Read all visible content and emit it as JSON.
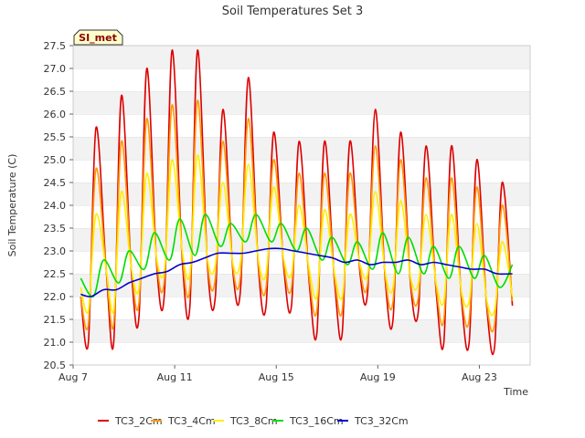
{
  "chart_data": {
    "type": "line",
    "title": "Soil Temperatures Set 3",
    "xlabel": "Time",
    "ylabel": "Soil Temperature (C)",
    "badge": "SI_met",
    "ylim": [
      20.5,
      27.5
    ],
    "yticks": [
      "20.5",
      "21.0",
      "21.5",
      "22.0",
      "22.5",
      "23.0",
      "23.5",
      "24.0",
      "24.5",
      "25.0",
      "25.5",
      "26.0",
      "26.5",
      "27.0",
      "27.5"
    ],
    "xlim": [
      0,
      18
    ],
    "xticks": [
      {
        "x": 0,
        "label": "Aug 7"
      },
      {
        "x": 4,
        "label": "Aug 11"
      },
      {
        "x": 8,
        "label": "Aug 15"
      },
      {
        "x": 12,
        "label": "Aug 19"
      },
      {
        "x": 16,
        "label": "Aug 23"
      }
    ],
    "grid": "horizontal bands",
    "legend_position": "bottom",
    "series": [
      {
        "name": "TC3_2Cm",
        "color": "#dd0000",
        "x": [
          0.3,
          0.6,
          0.9,
          1.3,
          1.6,
          1.9,
          2.3,
          2.6,
          2.9,
          3.3,
          3.6,
          3.9,
          4.3,
          4.6,
          4.9,
          5.3,
          5.6,
          5.9,
          6.3,
          6.6,
          6.9,
          7.3,
          7.6,
          7.9,
          8.3,
          8.6,
          8.9,
          9.3,
          9.6,
          9.9,
          10.3,
          10.6,
          10.9,
          11.3,
          11.6,
          11.9,
          12.3,
          12.6,
          12.9,
          13.3,
          13.6,
          13.9,
          14.3,
          14.6,
          14.9,
          15.3,
          15.6,
          15.9,
          16.3,
          16.6,
          16.9,
          17.3
        ],
        "y": [
          22.0,
          21.0,
          25.7,
          22.6,
          21.0,
          26.4,
          22.5,
          21.6,
          27.0,
          22.6,
          22.1,
          27.4,
          22.8,
          21.8,
          27.4,
          22.6,
          22.0,
          26.1,
          22.5,
          22.2,
          26.8,
          22.6,
          21.8,
          25.6,
          22.6,
          21.8,
          25.4,
          22.3,
          21.2,
          25.4,
          22.3,
          21.2,
          25.4,
          22.5,
          22.1,
          26.1,
          22.3,
          21.5,
          25.6,
          22.2,
          21.7,
          25.3,
          22.1,
          21.0,
          25.3,
          21.9,
          21.0,
          25.0,
          21.7,
          20.9,
          24.5,
          21.8
        ]
      },
      {
        "name": "TC3_4Cm",
        "color": "#ff9900",
        "x": [
          0.3,
          0.6,
          0.9,
          1.3,
          1.6,
          1.9,
          2.3,
          2.6,
          2.9,
          3.3,
          3.6,
          3.9,
          4.3,
          4.6,
          4.9,
          5.3,
          5.6,
          5.9,
          6.3,
          6.6,
          6.9,
          7.3,
          7.6,
          7.9,
          8.3,
          8.6,
          8.9,
          9.3,
          9.6,
          9.9,
          10.3,
          10.6,
          10.9,
          11.3,
          11.6,
          11.9,
          12.3,
          12.6,
          12.9,
          13.3,
          13.6,
          13.9,
          14.3,
          14.6,
          14.9,
          15.3,
          15.6,
          15.9,
          16.3,
          16.6,
          16.9,
          17.3
        ],
        "y": [
          22.0,
          21.4,
          24.8,
          22.6,
          21.4,
          25.4,
          22.6,
          21.9,
          25.9,
          22.7,
          22.4,
          26.2,
          22.9,
          22.2,
          26.3,
          22.7,
          22.4,
          25.4,
          22.6,
          22.5,
          25.9,
          22.7,
          22.2,
          25.0,
          22.7,
          22.2,
          24.7,
          22.4,
          21.7,
          24.7,
          22.4,
          21.7,
          24.7,
          22.6,
          22.3,
          25.3,
          22.4,
          21.9,
          25.0,
          22.3,
          22.0,
          24.6,
          22.2,
          21.5,
          24.6,
          22.0,
          21.5,
          24.4,
          21.8,
          21.4,
          24.0,
          21.9
        ]
      },
      {
        "name": "TC3_8Cm",
        "color": "#ffee00",
        "x": [
          0.3,
          0.6,
          0.9,
          1.3,
          1.6,
          1.9,
          2.3,
          2.6,
          2.9,
          3.3,
          3.6,
          3.9,
          4.3,
          4.6,
          4.9,
          5.3,
          5.6,
          5.9,
          6.3,
          6.6,
          6.9,
          7.3,
          7.6,
          7.9,
          8.3,
          8.6,
          8.9,
          9.3,
          9.6,
          9.9,
          10.3,
          10.6,
          10.9,
          11.3,
          11.6,
          11.9,
          12.3,
          12.6,
          12.9,
          13.3,
          13.6,
          13.9,
          14.3,
          14.6,
          14.9,
          15.3,
          15.6,
          15.9,
          16.3,
          16.6,
          16.9,
          17.3
        ],
        "y": [
          22.2,
          21.7,
          23.8,
          22.6,
          21.7,
          24.3,
          22.6,
          22.2,
          24.7,
          22.8,
          22.6,
          25.0,
          23.0,
          22.5,
          25.1,
          22.8,
          22.7,
          24.5,
          22.7,
          22.8,
          24.9,
          22.8,
          22.5,
          24.4,
          22.8,
          22.5,
          24.0,
          22.6,
          22.0,
          23.9,
          22.5,
          22.0,
          23.8,
          22.7,
          22.5,
          24.3,
          22.5,
          22.2,
          24.1,
          22.4,
          22.3,
          23.8,
          22.3,
          21.9,
          23.8,
          22.1,
          21.9,
          23.6,
          21.9,
          21.7,
          23.2,
          22.0
        ]
      },
      {
        "name": "TC3_16Cm",
        "color": "#00dd00",
        "x": [
          0.3,
          0.8,
          1.2,
          1.8,
          2.2,
          2.8,
          3.2,
          3.8,
          4.2,
          4.8,
          5.2,
          5.8,
          6.2,
          6.8,
          7.2,
          7.8,
          8.2,
          8.8,
          9.2,
          9.8,
          10.2,
          10.8,
          11.2,
          11.8,
          12.2,
          12.8,
          13.2,
          13.8,
          14.2,
          14.8,
          15.2,
          15.8,
          16.2,
          16.8,
          17.3
        ],
        "y": [
          22.4,
          22.0,
          22.8,
          22.3,
          23.0,
          22.6,
          23.4,
          22.8,
          23.7,
          22.9,
          23.8,
          23.1,
          23.6,
          23.2,
          23.8,
          23.2,
          23.6,
          23.0,
          23.5,
          22.8,
          23.3,
          22.7,
          23.2,
          22.6,
          23.4,
          22.5,
          23.3,
          22.5,
          23.1,
          22.4,
          23.1,
          22.4,
          22.9,
          22.2,
          22.7
        ]
      },
      {
        "name": "TC3_32Cm",
        "color": "#0000cc",
        "x": [
          0.3,
          0.7,
          1.2,
          1.7,
          2.2,
          2.7,
          3.2,
          3.7,
          4.2,
          4.7,
          5.2,
          5.7,
          6.2,
          6.7,
          7.2,
          7.7,
          8.2,
          8.7,
          9.2,
          9.7,
          10.2,
          10.7,
          11.2,
          11.7,
          12.2,
          12.7,
          13.2,
          13.7,
          14.2,
          14.7,
          15.2,
          15.7,
          16.2,
          16.7,
          17.3
        ],
        "y": [
          22.05,
          22.0,
          22.15,
          22.15,
          22.3,
          22.4,
          22.5,
          22.55,
          22.7,
          22.75,
          22.85,
          22.95,
          22.95,
          22.95,
          23.0,
          23.05,
          23.05,
          23.0,
          22.95,
          22.9,
          22.85,
          22.75,
          22.8,
          22.7,
          22.75,
          22.75,
          22.8,
          22.7,
          22.75,
          22.7,
          22.65,
          22.6,
          22.6,
          22.5,
          22.5
        ]
      }
    ]
  }
}
